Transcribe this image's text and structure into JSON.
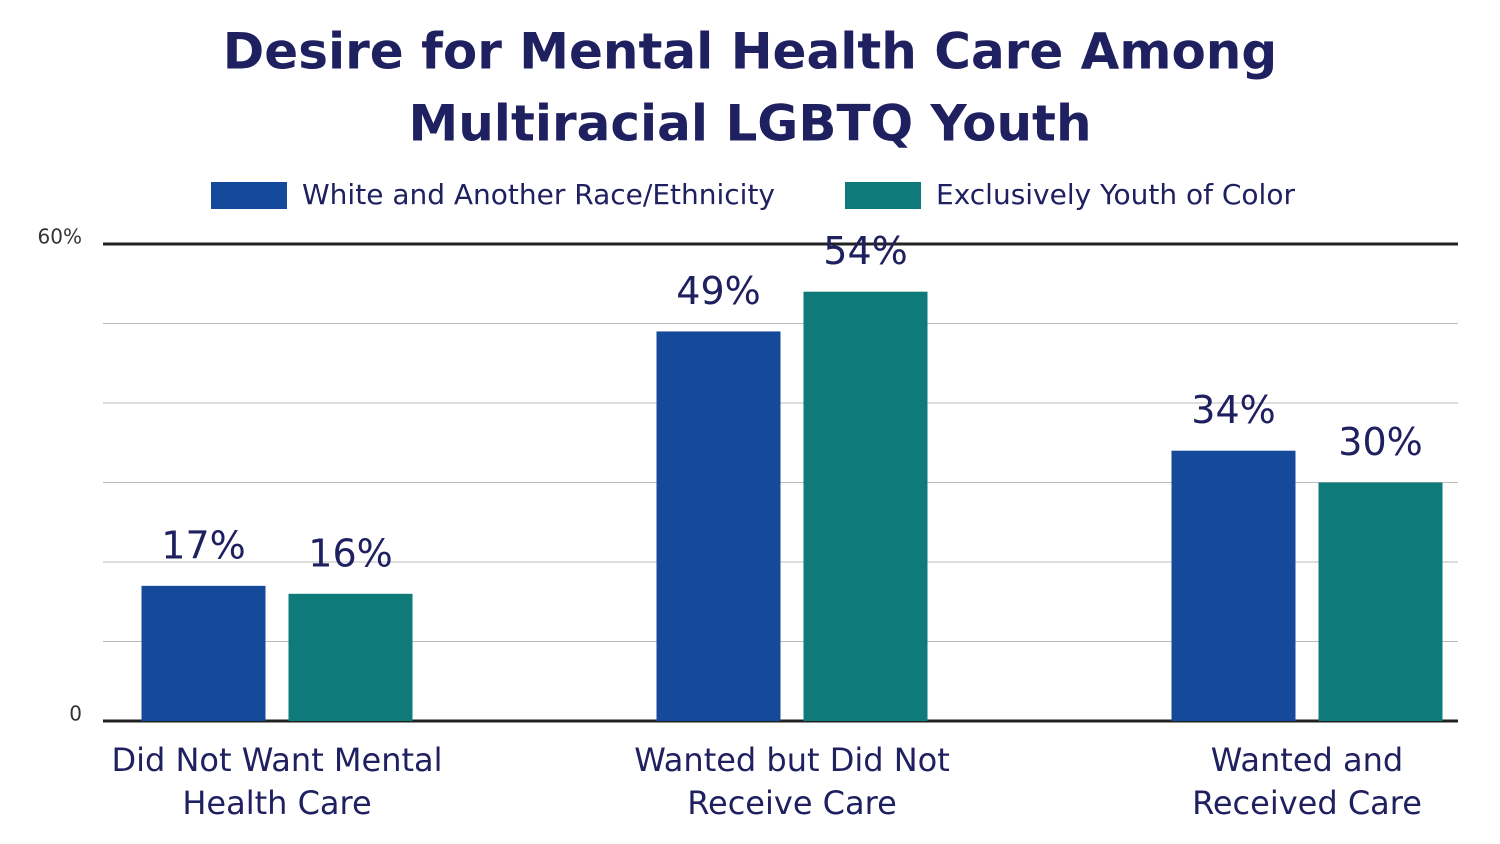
{
  "chart_data": {
    "type": "bar",
    "title": [
      "Desire for Mental Health Care Among",
      "Multiracial LGBTQ Youth"
    ],
    "categories": [
      [
        "Did Not Want Mental",
        "Health Care"
      ],
      [
        "Wanted but Did Not",
        "Receive Care"
      ],
      [
        "Wanted and",
        "Received Care"
      ]
    ],
    "series": [
      {
        "name": "White and Another Race/Ethnicity",
        "color": "#154a9a",
        "values": [
          17,
          49,
          34
        ],
        "value_labels": [
          "17%",
          "49%",
          "34%"
        ]
      },
      {
        "name": "Exclusively Youth of Color",
        "color": "#0e7a7a",
        "values": [
          16,
          54,
          30
        ],
        "value_labels": [
          "16%",
          "54%",
          "30%"
        ]
      }
    ],
    "ylim": [
      0,
      60
    ],
    "yticks": [
      0,
      {
        "value": 60,
        "label": "60%"
      }
    ],
    "ygrid": [
      0,
      10,
      20,
      30,
      40,
      50,
      60
    ],
    "legend": "top"
  }
}
